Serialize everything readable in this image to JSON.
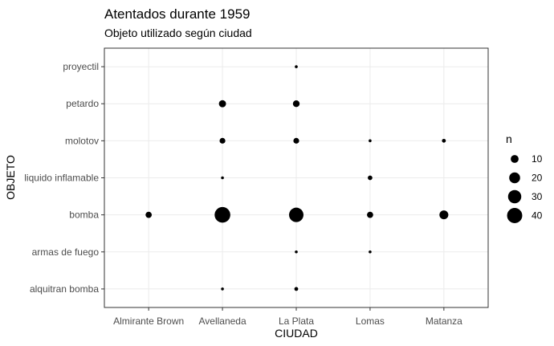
{
  "chart_data": {
    "type": "scatter",
    "title": "Atentados durante 1959",
    "subtitle": "Objeto utilizado según ciudad",
    "xlabel": "CIUDAD",
    "ylabel": "OBJETO",
    "x_categories": [
      "Almirante Brown",
      "Avellaneda",
      "La Plata",
      "Lomas",
      "Matanza"
    ],
    "y_categories": [
      "alquitran bomba",
      "armas de fuego",
      "bomba",
      "liquido inflamable",
      "molotov",
      "petardo",
      "proyectil"
    ],
    "grid": true,
    "legend": {
      "title": "n",
      "placement": "right",
      "entries": [
        10,
        20,
        30,
        40
      ]
    },
    "size_range": [
      1,
      45
    ],
    "points": [
      {
        "x": "La Plata",
        "y": "proyectil",
        "n": 1
      },
      {
        "x": "Avellaneda",
        "y": "petardo",
        "n": 8
      },
      {
        "x": "La Plata",
        "y": "petardo",
        "n": 7
      },
      {
        "x": "Avellaneda",
        "y": "molotov",
        "n": 5
      },
      {
        "x": "La Plata",
        "y": "molotov",
        "n": 5
      },
      {
        "x": "Lomas",
        "y": "molotov",
        "n": 1
      },
      {
        "x": "Matanza",
        "y": "molotov",
        "n": 2
      },
      {
        "x": "Avellaneda",
        "y": "liquido inflamable",
        "n": 1
      },
      {
        "x": "Lomas",
        "y": "liquido inflamable",
        "n": 3
      },
      {
        "x": "Almirante Brown",
        "y": "bomba",
        "n": 6
      },
      {
        "x": "Avellaneda",
        "y": "bomba",
        "n": 43
      },
      {
        "x": "La Plata",
        "y": "bomba",
        "n": 36
      },
      {
        "x": "Lomas",
        "y": "bomba",
        "n": 6
      },
      {
        "x": "Matanza",
        "y": "bomba",
        "n": 13
      },
      {
        "x": "La Plata",
        "y": "armas de fuego",
        "n": 1
      },
      {
        "x": "Lomas",
        "y": "armas de fuego",
        "n": 1
      },
      {
        "x": "Avellaneda",
        "y": "alquitran bomba",
        "n": 1
      },
      {
        "x": "La Plata",
        "y": "alquitran bomba",
        "n": 2
      }
    ]
  }
}
